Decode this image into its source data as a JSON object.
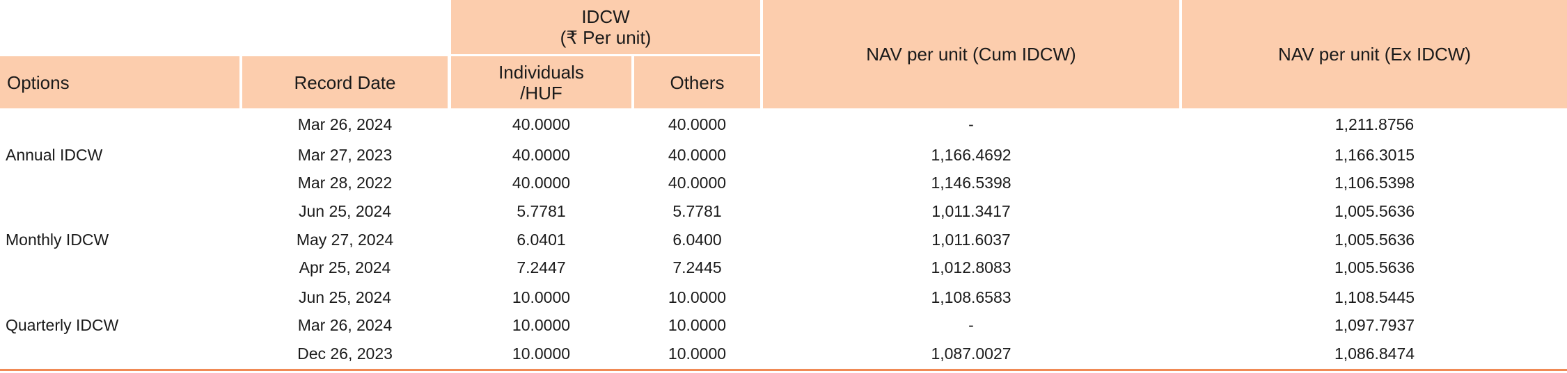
{
  "header": {
    "options": "Options",
    "record_date": "Record Date",
    "idcw_line1": "IDCW",
    "idcw_line2": "(₹ Per unit)",
    "individuals_line1": "Individuals",
    "individuals_line2": "/HUF",
    "others": "Others",
    "nav_cum": "NAV per unit (Cum IDCW)",
    "nav_ex": "NAV per unit (Ex IDCW)"
  },
  "groups": [
    {
      "option": "Annual IDCW",
      "rows": [
        {
          "date": "Mar 26, 2024",
          "individuals": "40.0000",
          "others": "40.0000",
          "nav_cum": "-",
          "nav_ex": "1,211.8756"
        },
        {
          "date": "Mar 27, 2023",
          "individuals": "40.0000",
          "others": "40.0000",
          "nav_cum": "1,166.4692",
          "nav_ex": "1,166.3015"
        },
        {
          "date": "Mar 28, 2022",
          "individuals": "40.0000",
          "others": "40.0000",
          "nav_cum": "1,146.5398",
          "nav_ex": "1,106.5398"
        }
      ]
    },
    {
      "option": "Monthly IDCW",
      "rows": [
        {
          "date": "Jun 25, 2024",
          "individuals": "5.7781",
          "others": "5.7781",
          "nav_cum": "1,011.3417",
          "nav_ex": "1,005.5636"
        },
        {
          "date": "May 27, 2024",
          "individuals": "6.0401",
          "others": "6.0400",
          "nav_cum": "1,011.6037",
          "nav_ex": "1,005.5636"
        },
        {
          "date": "Apr 25, 2024",
          "individuals": "7.2447",
          "others": "7.2445",
          "nav_cum": "1,012.8083",
          "nav_ex": "1,005.5636"
        }
      ]
    },
    {
      "option": "Quarterly IDCW",
      "rows": [
        {
          "date": "Jun 25, 2024",
          "individuals": "10.0000",
          "others": "10.0000",
          "nav_cum": "1,108.6583",
          "nav_ex": "1,108.5445"
        },
        {
          "date": "Mar 26, 2024",
          "individuals": "10.0000",
          "others": "10.0000",
          "nav_cum": "-",
          "nav_ex": "1,097.7937"
        },
        {
          "date": "Dec 26, 2023",
          "individuals": "10.0000",
          "others": "10.0000",
          "nav_cum": "1,087.0027",
          "nav_ex": "1,086.8474"
        }
      ]
    }
  ]
}
